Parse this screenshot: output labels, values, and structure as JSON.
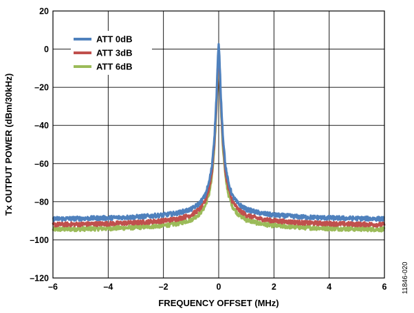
{
  "chart_data": {
    "type": "line",
    "xlabel": "FREQUENCY OFFSET (MHz)",
    "ylabel": "Tx OUTPUT POWER (dBm/30kHz)",
    "xlim": [
      -6,
      6
    ],
    "ylim": [
      -120,
      20
    ],
    "x_ticks": [
      -6,
      -4,
      -2,
      0,
      2,
      4,
      6
    ],
    "x_tick_labels": [
      "–6",
      "–4",
      "–2",
      "0",
      "2",
      "4",
      "6"
    ],
    "y_ticks": [
      -120,
      -100,
      -80,
      -60,
      -40,
      -20,
      0,
      20
    ],
    "y_tick_labels": [
      "–120",
      "–100",
      "–80",
      "–60",
      "–40",
      "–20",
      "0",
      "20"
    ],
    "grid": true,
    "legend_position": "top-left",
    "figure_id": "11846-020",
    "series": [
      {
        "name": "ATT 0dB",
        "color": "#4f81bd",
        "x": [
          -6,
          -5,
          -4,
          -3,
          -2,
          -1.5,
          -1,
          -0.7,
          -0.5,
          -0.35,
          -0.25,
          -0.15,
          -0.08,
          -0.03,
          0,
          0.03,
          0.08,
          0.15,
          0.25,
          0.35,
          0.5,
          0.7,
          1,
          1.5,
          2,
          3,
          4,
          5,
          6
        ],
        "y": [
          -89,
          -88.8,
          -88.5,
          -88,
          -87,
          -86,
          -84,
          -81,
          -77,
          -70,
          -62,
          -45,
          -25,
          -5,
          2,
          -5,
          -25,
          -45,
          -62,
          -70,
          -77,
          -81,
          -84,
          -86,
          -87,
          -88,
          -88.5,
          -88.8,
          -89
        ]
      },
      {
        "name": "ATT 3dB",
        "color": "#c0504d",
        "x": [
          -6,
          -5,
          -4,
          -3,
          -2,
          -1.5,
          -1,
          -0.7,
          -0.5,
          -0.35,
          -0.25,
          -0.15,
          -0.08,
          -0.03,
          0,
          0.03,
          0.08,
          0.15,
          0.25,
          0.35,
          0.5,
          0.7,
          1,
          1.5,
          2,
          3,
          4,
          5,
          6
        ],
        "y": [
          -92,
          -91.8,
          -91.5,
          -91,
          -90,
          -89,
          -87,
          -84,
          -80,
          -73,
          -65,
          -48,
          -28,
          -8,
          -1,
          -8,
          -28,
          -48,
          -65,
          -73,
          -80,
          -84,
          -87,
          -89,
          -90,
          -91,
          -91.5,
          -91.8,
          -92
        ]
      },
      {
        "name": "ATT 6dB",
        "color": "#9bbb59",
        "x": [
          -6,
          -5,
          -4,
          -3,
          -2,
          -1.5,
          -1,
          -0.7,
          -0.5,
          -0.35,
          -0.25,
          -0.15,
          -0.08,
          -0.03,
          0,
          0.03,
          0.08,
          0.15,
          0.25,
          0.35,
          0.5,
          0.7,
          1,
          1.5,
          2,
          3,
          4,
          5,
          6
        ],
        "y": [
          -94.5,
          -94.3,
          -94,
          -93.5,
          -92.5,
          -91.5,
          -89.5,
          -86.5,
          -82.5,
          -76,
          -68,
          -51,
          -31,
          -11,
          -4,
          -11,
          -31,
          -51,
          -68,
          -76,
          -82.5,
          -86.5,
          -89.5,
          -91.5,
          -92.5,
          -93.5,
          -94,
          -94.3,
          -94.5
        ]
      }
    ]
  }
}
